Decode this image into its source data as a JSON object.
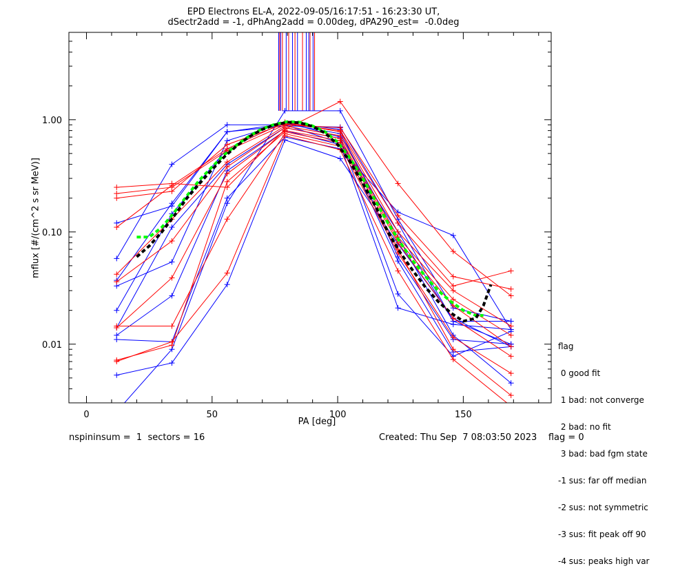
{
  "title_line1": "EPD Electrons EL-A, 2022-09-05/16:17:51 - 16:23:30 UT,",
  "title_line2": "dSectr2add = -1, dPhAng2add = 0.00deg, dPA290_est=  -0.0deg",
  "footer_left": "nspininsum =  1  sectors = 16",
  "footer_right": "Created: Thu Sep  7 08:03:50 2023    flag = 0",
  "flag_legend": {
    "title": "flag",
    "items": [
      " 0 good fit",
      " 1 bad: not converge",
      " 2 bad: no fit",
      " 3 bad: bad fgm state",
      "-1 sus: far off median",
      "-2 sus: not symmetric",
      "-3 sus: fit peak off 90",
      "-4 sus: peaks high var"
    ]
  },
  "chart_data": {
    "type": "line",
    "xlabel": "PA [deg]",
    "ylabel": "mflux [#/(cm^2 s sr MeV)]",
    "xlim": [
      -7,
      185
    ],
    "ylim": [
      0.003,
      6
    ],
    "yscale": "log",
    "xticks": [
      0,
      50,
      100,
      150
    ],
    "yticks": [
      {
        "value": 0.01,
        "label": "0.01"
      },
      {
        "value": 0.1,
        "label": "0.10"
      },
      {
        "value": 1,
        "label": "1.00"
      }
    ],
    "x": [
      12,
      34,
      56,
      79,
      101,
      124,
      146,
      169
    ],
    "colors": {
      "blue": "#0000ff",
      "red": "#ff0000",
      "green": "#00ff00",
      "black": "#000000"
    },
    "series": [
      {
        "color": "blue",
        "values": [
          0.12,
          0.17,
          0.78,
          0.88,
          0.86,
          0.12,
          0.016,
          0.016
        ]
      },
      {
        "color": "blue",
        "values": [
          0.058,
          0.4,
          0.9,
          0.9,
          0.62,
          0.1,
          0.016,
          0.01
        ]
      },
      {
        "color": "blue",
        "values": [
          0.037,
          0.18,
          0.78,
          0.92,
          0.75,
          0.09,
          0.012,
          0.0045
        ]
      },
      {
        "color": "blue",
        "values": [
          0.033,
          0.054,
          0.65,
          0.94,
          0.82,
          0.06,
          0.011,
          0.01
        ]
      },
      {
        "color": "blue",
        "values": [
          0.02,
          0.145,
          0.55,
          0.95,
          0.7,
          0.055,
          0.0085,
          0.0095
        ]
      },
      {
        "color": "blue",
        "values": [
          0.014,
          0.11,
          0.4,
          0.85,
          0.68,
          0.028,
          0.0078,
          0.013
        ]
      },
      {
        "color": "blue",
        "values": [
          0.012,
          0.027,
          0.35,
          0.8,
          0.6,
          0.021,
          0.015,
          0.0135
        ]
      },
      {
        "color": "blue",
        "values": [
          0.011,
          0.0105,
          0.2,
          0.7,
          0.55,
          0.15,
          0.093,
          0.0135
        ]
      },
      {
        "color": "blue",
        "values": [
          0.0053,
          0.0068,
          0.034,
          0.66,
          0.45,
          0.078,
          0.017,
          0.0095
        ]
      },
      {
        "color": "blue",
        "values": [
          0.0025,
          0.009,
          0.18,
          1.2,
          1.2,
          0.13,
          0.021,
          0.016
        ]
      },
      {
        "color": "red",
        "values": [
          0.25,
          0.27,
          0.25,
          0.82,
          1.45,
          0.27,
          0.067,
          0.027
        ]
      },
      {
        "color": "red",
        "values": [
          0.22,
          0.25,
          0.53,
          0.9,
          0.85,
          0.14,
          0.04,
          0.031
        ]
      },
      {
        "color": "red",
        "values": [
          0.2,
          0.23,
          0.6,
          0.92,
          0.8,
          0.12,
          0.033,
          0.045
        ]
      },
      {
        "color": "red",
        "values": [
          0.11,
          0.26,
          0.55,
          0.95,
          0.78,
          0.1,
          0.03,
          0.0145
        ]
      },
      {
        "color": "red",
        "values": [
          0.042,
          0.13,
          0.42,
          0.88,
          0.72,
          0.09,
          0.025,
          0.012
        ]
      },
      {
        "color": "red",
        "values": [
          0.036,
          0.083,
          0.38,
          0.85,
          0.68,
          0.085,
          0.022,
          0.0095
        ]
      },
      {
        "color": "red",
        "values": [
          0.014,
          0.039,
          0.33,
          0.8,
          0.65,
          0.08,
          0.017,
          0.0078
        ]
      },
      {
        "color": "red",
        "values": [
          0.0145,
          0.0145,
          0.13,
          0.75,
          0.58,
          0.065,
          0.0115,
          0.0055
        ]
      },
      {
        "color": "red",
        "values": [
          0.007,
          0.0105,
          0.043,
          0.72,
          0.54,
          0.045,
          0.0073,
          0.0028
        ]
      },
      {
        "color": "red",
        "values": [
          0.0072,
          0.0098,
          0.28,
          0.78,
          0.62,
          0.07,
          0.009,
          0.0035
        ]
      }
    ],
    "fits": [
      {
        "color": "green",
        "style": "dashed",
        "x": [
          20,
          25,
          30,
          35,
          40,
          45,
          50,
          55,
          60,
          65,
          70,
          75,
          80,
          85,
          90,
          95,
          100,
          105,
          110,
          115,
          120,
          125,
          130,
          135,
          140,
          145,
          150,
          155,
          158
        ],
        "values": [
          0.09,
          0.09,
          0.11,
          0.15,
          0.21,
          0.29,
          0.38,
          0.49,
          0.6,
          0.72,
          0.83,
          0.91,
          0.96,
          0.95,
          0.88,
          0.78,
          0.63,
          0.45,
          0.3,
          0.19,
          0.12,
          0.08,
          0.055,
          0.04,
          0.03,
          0.024,
          0.02,
          0.018,
          0.018
        ]
      },
      {
        "color": "black",
        "style": "dashed",
        "x": [
          20,
          25,
          30,
          35,
          40,
          45,
          50,
          55,
          60,
          65,
          70,
          75,
          80,
          85,
          90,
          95,
          100,
          105,
          110,
          115,
          120,
          125,
          130,
          135,
          140,
          145,
          150,
          155,
          158,
          161
        ],
        "values": [
          0.06,
          0.075,
          0.1,
          0.14,
          0.2,
          0.27,
          0.36,
          0.47,
          0.59,
          0.71,
          0.82,
          0.9,
          0.95,
          0.94,
          0.87,
          0.76,
          0.6,
          0.42,
          0.27,
          0.17,
          0.1,
          0.065,
          0.045,
          0.032,
          0.024,
          0.019,
          0.016,
          0.017,
          0.022,
          0.034
        ]
      }
    ],
    "vertical_lines": [
      {
        "color": "blue",
        "x": [
          76.5,
          77.3,
          79.5,
          82,
          84,
          87.5,
          88.5,
          90.2
        ]
      },
      {
        "color": "red",
        "x": [
          76.9,
          78,
          80.5,
          83,
          86,
          89,
          90.8
        ]
      }
    ]
  }
}
